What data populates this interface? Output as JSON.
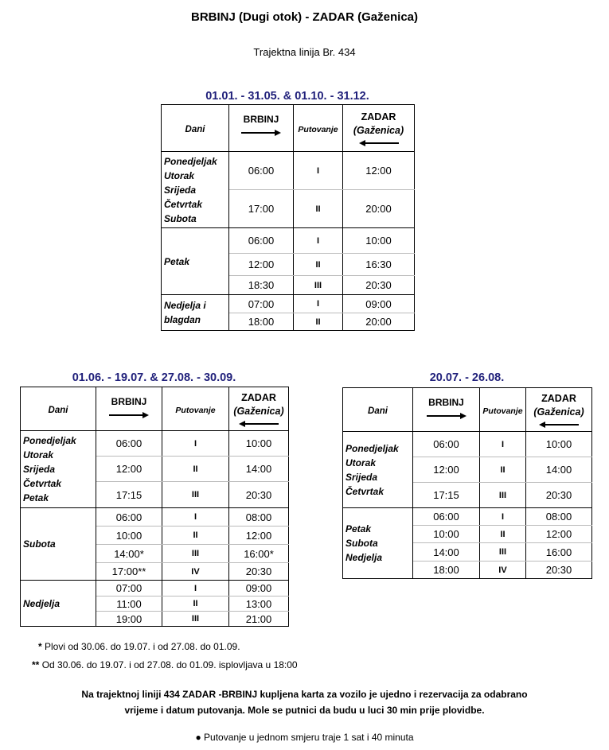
{
  "title": "BRBINJ (Dugi otok) - ZADAR (Gaženica)",
  "subtitle": "Trajektna linija Br. 434",
  "tables": [
    {
      "period": "01.01. - 31.05. & 01.10. - 31.12.",
      "headers": {
        "days": "Dani",
        "from": "BRBINJ",
        "trip": "Putovanje",
        "to_line1": "ZADAR",
        "to_line2": "(Gaženica)"
      },
      "groups": [
        {
          "days": [
            "Ponedjeljak",
            "Utorak",
            "Srijeda",
            "Četvrtak",
            "Subota"
          ],
          "rows": [
            {
              "dep": "06:00",
              "trip": "I",
              "arr": "12:00"
            },
            {
              "dep": "17:00",
              "trip": "II",
              "arr": "20:00"
            }
          ]
        },
        {
          "days": [
            "Petak"
          ],
          "rows": [
            {
              "dep": "06:00",
              "trip": "I",
              "arr": "10:00"
            },
            {
              "dep": "12:00",
              "trip": "II",
              "arr": "16:30"
            },
            {
              "dep": "18:30",
              "trip": "III",
              "arr": "20:30"
            }
          ]
        },
        {
          "days": [
            "Nedjelja i",
            "blagdan"
          ],
          "rows": [
            {
              "dep": "07:00",
              "trip": "I",
              "arr": "09:00"
            },
            {
              "dep": "18:00",
              "trip": "II",
              "arr": "20:00"
            }
          ]
        }
      ]
    },
    {
      "period": "01.06. - 19.07.  & 27.08. - 30.09.",
      "headers": {
        "days": "Dani",
        "from": "BRBINJ",
        "trip": "Putovanje",
        "to_line1": "ZADAR",
        "to_line2": "(Gaženica)"
      },
      "groups": [
        {
          "days": [
            "Ponedjeljak",
            "Utorak",
            "Srijeda",
            "Četvrtak",
            "Petak"
          ],
          "rows": [
            {
              "dep": "06:00",
              "trip": "I",
              "arr": "10:00"
            },
            {
              "dep": "12:00",
              "trip": "II",
              "arr": "14:00"
            },
            {
              "dep": "17:15",
              "trip": "III",
              "arr": "20:30"
            }
          ]
        },
        {
          "days": [
            "Subota"
          ],
          "rows": [
            {
              "dep": "06:00",
              "trip": "I",
              "arr": "08:00"
            },
            {
              "dep": "10:00",
              "trip": "II",
              "arr": "12:00"
            },
            {
              "dep": "14:00*",
              "trip": "III",
              "arr": "16:00*"
            },
            {
              "dep": "17:00**",
              "trip": "IV",
              "arr": "20:30"
            }
          ]
        },
        {
          "days": [
            "Nedjelja"
          ],
          "rows": [
            {
              "dep": "07:00",
              "trip": "I",
              "arr": "09:00"
            },
            {
              "dep": "11:00",
              "trip": "II",
              "arr": "13:00"
            },
            {
              "dep": "19:00",
              "trip": "III",
              "arr": "21:00"
            }
          ]
        }
      ]
    },
    {
      "period": "20.07. - 26.08.",
      "headers": {
        "days": "Dani",
        "from": "BRBINJ",
        "trip": "Putovanje",
        "to_line1": "ZADAR",
        "to_line2": "(Gaženica)"
      },
      "groups": [
        {
          "days": [
            "Ponedjeljak",
            "Utorak",
            "Srijeda",
            "Četvrtak"
          ],
          "rows": [
            {
              "dep": "06:00",
              "trip": "I",
              "arr": "10:00"
            },
            {
              "dep": "12:00",
              "trip": "II",
              "arr": "14:00"
            },
            {
              "dep": "17:15",
              "trip": "III",
              "arr": "20:30"
            }
          ]
        },
        {
          "days": [
            "Petak",
            "Subota",
            "Nedjelja"
          ],
          "rows": [
            {
              "dep": "06:00",
              "trip": "I",
              "arr": "08:00"
            },
            {
              "dep": "10:00",
              "trip": "II",
              "arr": "12:00"
            },
            {
              "dep": "14:00",
              "trip": "III",
              "arr": "16:00"
            },
            {
              "dep": "18:00",
              "trip": "IV",
              "arr": "20:30"
            }
          ]
        }
      ]
    }
  ],
  "notes": [
    {
      "mark": "*",
      "text": "Plovi od 30.06. do 19.07. i od 27.08. do 01.09."
    },
    {
      "mark": "**",
      "text": "Od 30.06. do 19.07. i od 27.08. do  01.09. isplovljava u 18:00"
    }
  ],
  "info_lines": [
    "Na trajektnoj liniji 434 ZADAR -BRBINJ kupljena karta za vozilo je ujedno i rezervacija za odabrano",
    "vrijeme i datum putovanja. Mole se putnici da budu u luci 30 min prije plovidbe."
  ],
  "bullet": "Putovanje u jednom smjeru traje 1 sat i 40 minuta"
}
